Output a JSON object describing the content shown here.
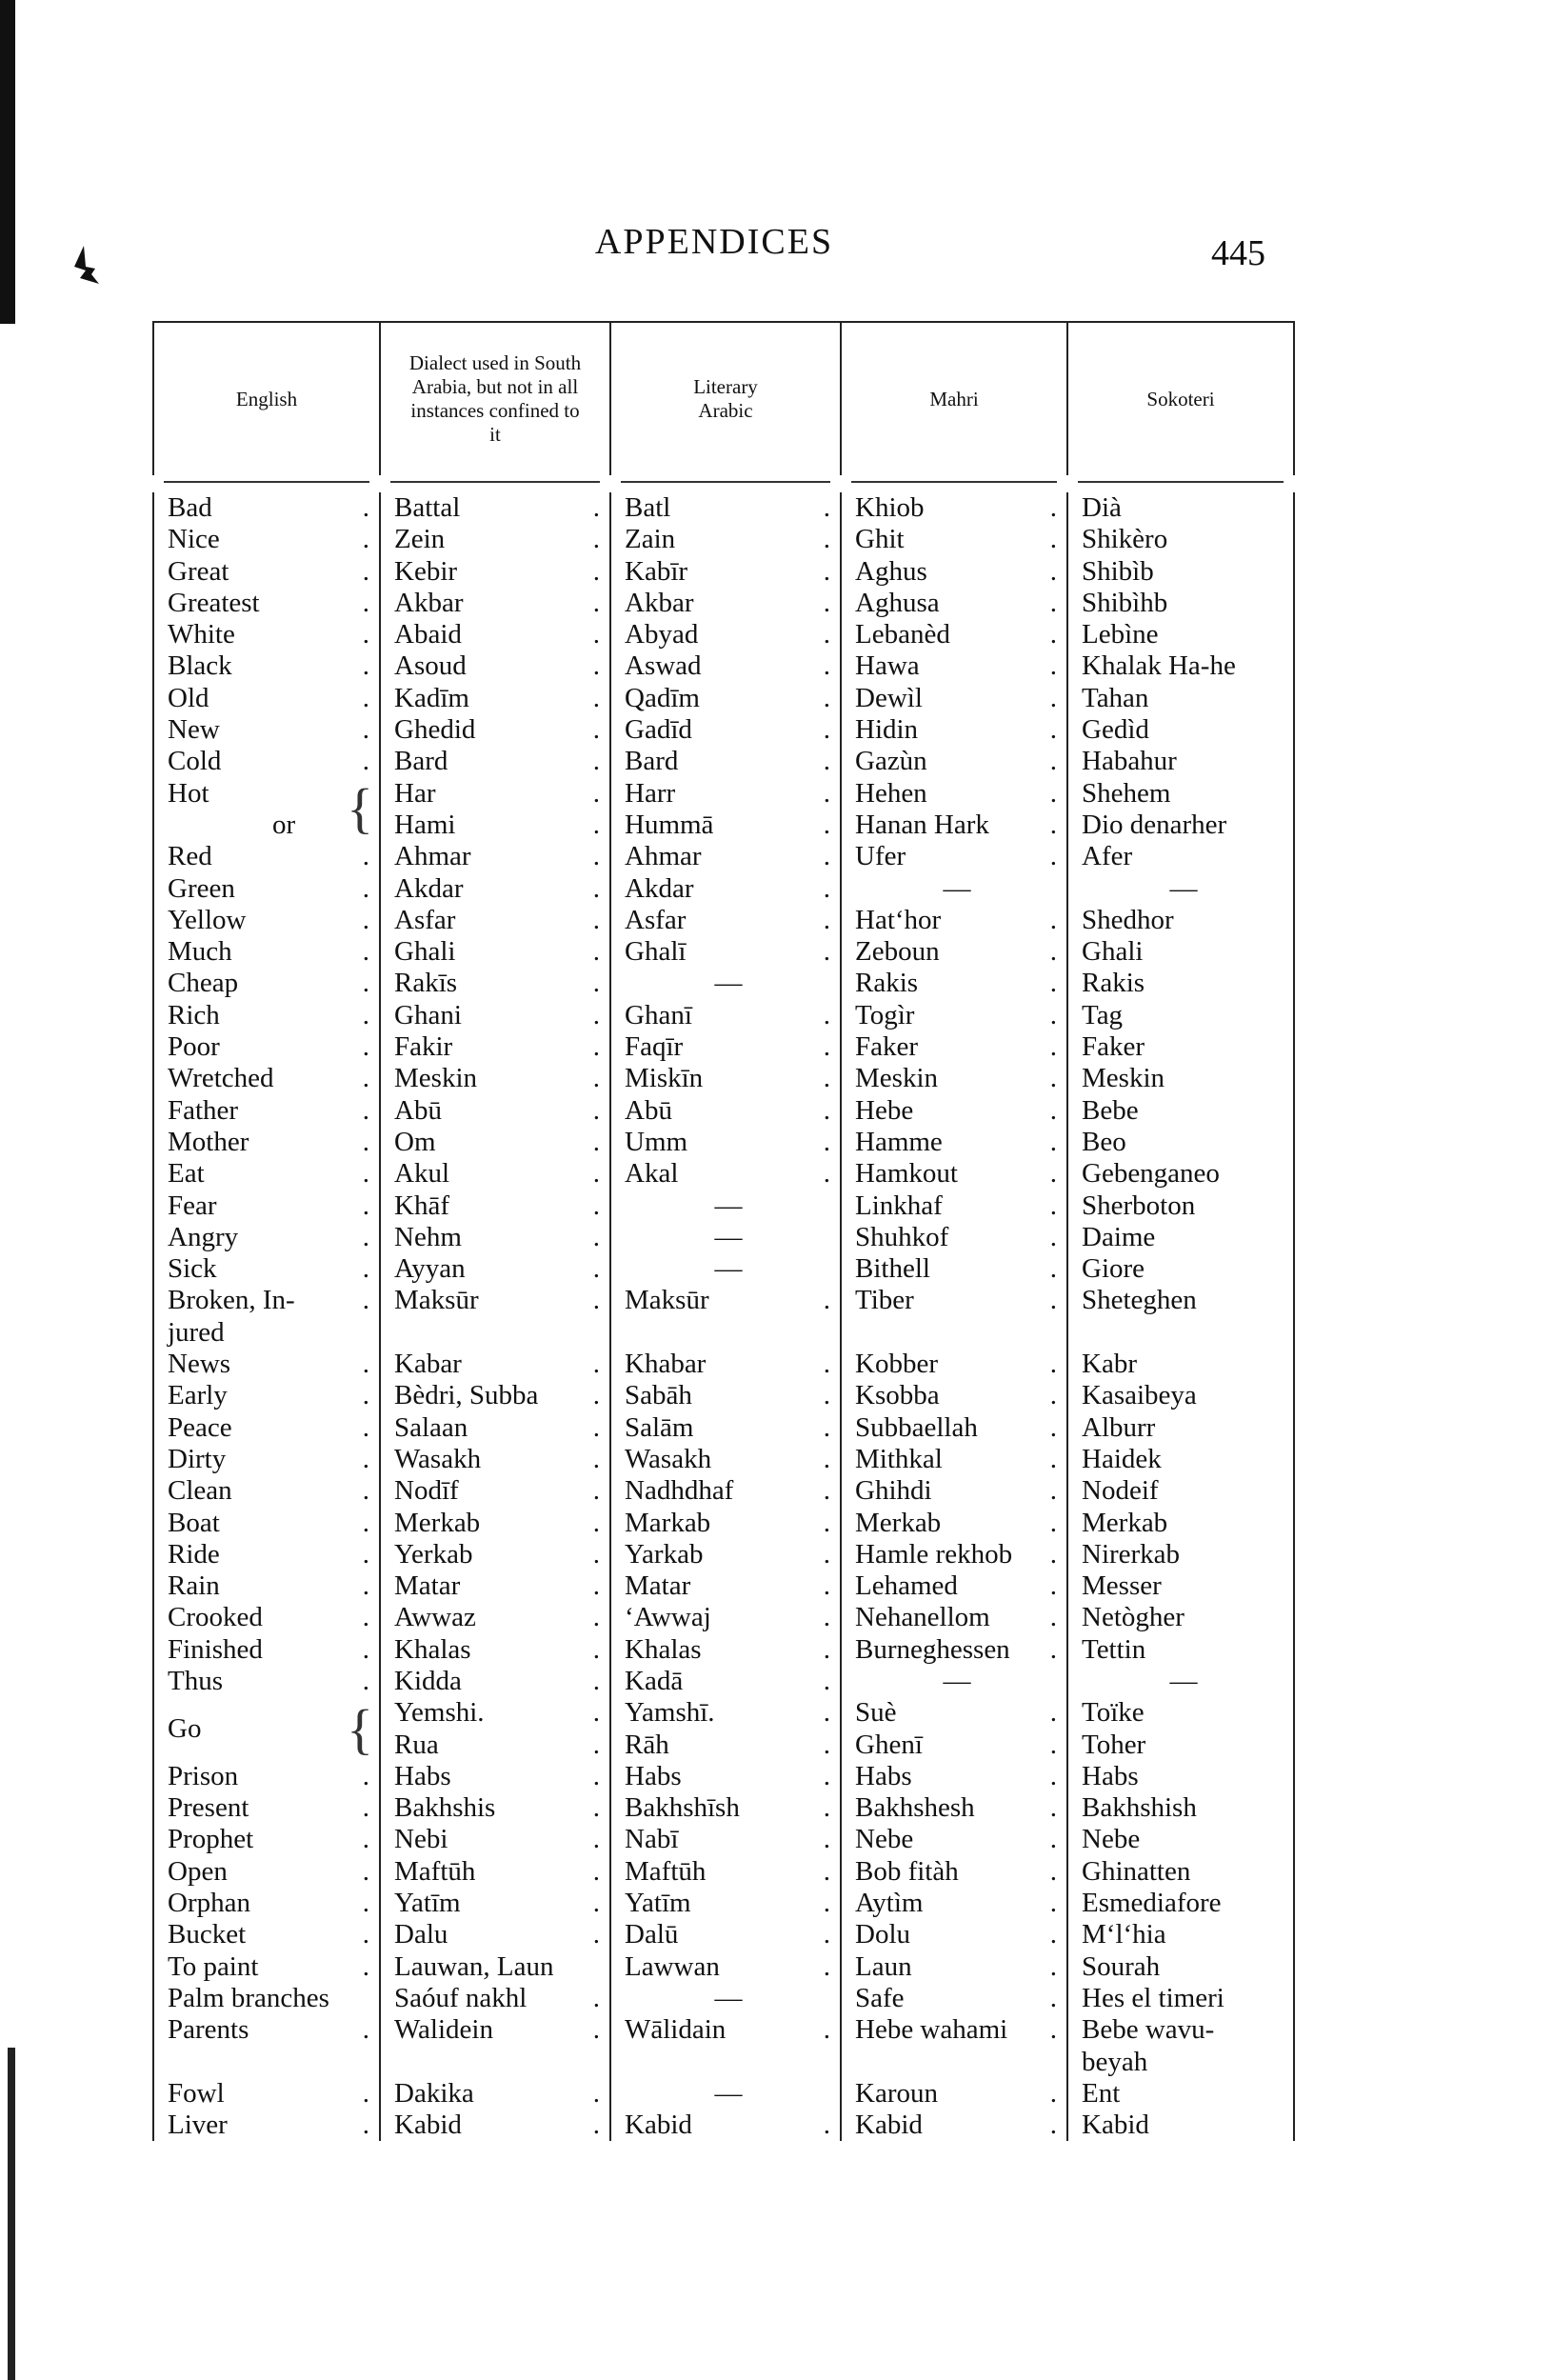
{
  "page": {
    "title": "APPENDICES",
    "page_number": "445"
  },
  "table": {
    "headers": [
      "English",
      "Dialect used in South Arabia, but not in all instances confined to it",
      "Literary Arabic",
      "Mahri",
      "Sokoteri"
    ],
    "rows": [
      [
        "Bad",
        "Battal",
        "Batl",
        "Khiob",
        "Dià"
      ],
      [
        "Nice",
        "Zein",
        "Zain",
        "Ghit",
        "Shikèro"
      ],
      [
        "Great",
        "Kebir",
        "Kabīr",
        "Aghus",
        "Shibìb"
      ],
      [
        "Greatest",
        "Akbar",
        "Akbar",
        "Aghusa",
        "Shibìhb"
      ],
      [
        "White",
        "Abaid",
        "Abyad",
        "Lebanèd",
        "Lebìne"
      ],
      [
        "Black",
        "Asoud",
        "Aswad",
        "Hawa",
        "Khalak Ha-he"
      ],
      [
        "Old",
        "Kadīm",
        "Qadīm",
        "Dewìl",
        "Tahan"
      ],
      [
        "New",
        "Ghedid",
        "Gadīd",
        "Hidin",
        "Gedìd"
      ],
      [
        "Cold",
        "Bard",
        "Bard",
        "Gazùn",
        "Habahur"
      ],
      [
        "Hot",
        "Har",
        "Harr",
        "Hehen",
        "Shehem"
      ],
      [
        "or",
        "Hami",
        "Hummā",
        "Hanan Hark",
        "Dio denarher"
      ],
      [
        "Red",
        "Ahmar",
        "Ahmar",
        "Ufer",
        "Afer"
      ],
      [
        "Green",
        "Akdar",
        "Akdar",
        "—",
        "—"
      ],
      [
        "Yellow",
        "Asfar",
        "Asfar",
        "Hat‘hor",
        "Shedhor"
      ],
      [
        "Much",
        "Ghali",
        "Ghalī",
        "Zeboun",
        "Ghali"
      ],
      [
        "Cheap",
        "Rakīs",
        "—",
        "Rakis",
        "Rakis"
      ],
      [
        "Rich",
        "Ghani",
        "Ghanī",
        "Togìr",
        "Tag"
      ],
      [
        "Poor",
        "Fakir",
        "Faqīr",
        "Faker",
        "Faker"
      ],
      [
        "Wretched",
        "Meskin",
        "Miskīn",
        "Meskin",
        "Meskin"
      ],
      [
        "Father",
        "Abū",
        "Abū",
        "Hebe",
        "Bebe"
      ],
      [
        "Mother",
        "Om",
        "Umm",
        "Hamme",
        "Beo"
      ],
      [
        "Eat",
        "Akul",
        "Akal",
        "Hamkout",
        "Gebenganeo"
      ],
      [
        "Fear",
        "Khāf",
        "—",
        "Linkhaf",
        "Sherboton"
      ],
      [
        "Angry",
        "Nehm",
        "—",
        "Shuhkof",
        "Daime"
      ],
      [
        "Sick",
        "Ayyan",
        "—",
        "Bithell",
        "Giore"
      ],
      [
        "Broken, In-\njured",
        "Maksūr",
        "Maksūr",
        "Tiber",
        "Sheteghen"
      ],
      [
        "News",
        "Kabar",
        "Khabar",
        "Kobber",
        "Kabr"
      ],
      [
        "Early",
        "Bèdri, Subba",
        "Sabāh",
        "Ksobba",
        "Kasaibeya"
      ],
      [
        "Peace",
        "Salaan",
        "Salām",
        "Subbaellah",
        "Alburr"
      ],
      [
        "Dirty",
        "Wasakh",
        "Wasakh",
        "Mithkal",
        "Haidek"
      ],
      [
        "Clean",
        "Nodīf",
        "Nadhdhaf",
        "Ghihdi",
        "Nodeif"
      ],
      [
        "Boat",
        "Merkab",
        "Markab",
        "Merkab",
        "Merkab"
      ],
      [
        "Ride",
        "Yerkab",
        "Yarkab",
        "Hamle rekhob",
        "Nirerkab"
      ],
      [
        "Rain",
        "Matar",
        "Matar",
        "Lehamed",
        "Messer"
      ],
      [
        "Crooked",
        "Awwaz",
        "‘Awwaj",
        "Nehanellom",
        "Netògher"
      ],
      [
        "Finished",
        "Khalas",
        "Khalas",
        "Burneghessen",
        "Tettin"
      ],
      [
        "Thus",
        "Kidda",
        "Kadā",
        "—",
        "—"
      ],
      [
        "Go",
        "Yemshi.\nRua",
        "Yamshī.\nRāh",
        "Suè\nGhenī",
        "Toïke\nToher"
      ],
      [
        "Prison",
        "Habs",
        "Habs",
        "Habs",
        "Habs"
      ],
      [
        "Present",
        "Bakhshis",
        "Bakhshīsh",
        "Bakhshesh",
        "Bakhshish"
      ],
      [
        "Prophet",
        "Nebi",
        "Nabī",
        "Nebe",
        "Nebe"
      ],
      [
        "Open",
        "Maftūh",
        "Maftūh",
        "Bob fitàh",
        "Ghinatten"
      ],
      [
        "Orphan",
        "Yatīm",
        "Yatīm",
        "Aytìm",
        "Esmediafore"
      ],
      [
        "Bucket",
        "Dalu",
        "Dalū",
        "Dolu",
        "M‘l‘hia"
      ],
      [
        "To paint",
        "Lauwan, Laun",
        "Lawwan",
        "Laun",
        "Sourah"
      ],
      [
        "Palm branches",
        "Saóuf nakhl",
        "—",
        "Safe",
        "Hes el timeri"
      ],
      [
        "Parents",
        "Walidein",
        "Wālidain",
        "Hebe wahami",
        "Bebe wavu-\nbeyah"
      ],
      [
        "Fowl",
        "Dakika",
        "—",
        "Karoun",
        "Ent"
      ],
      [
        "Liver",
        "Kabid",
        "Kabid",
        "Kabid",
        "Kabid"
      ]
    ]
  }
}
